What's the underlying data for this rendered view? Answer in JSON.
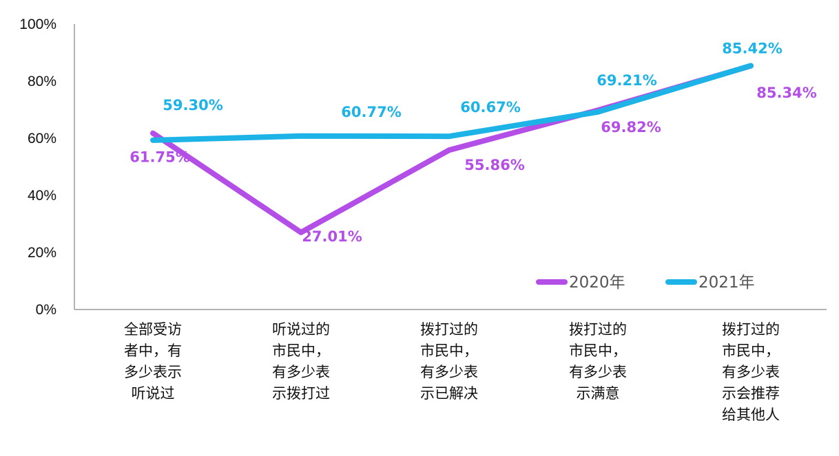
{
  "chart_data": {
    "type": "line",
    "categories": [
      [
        "全部受访",
        "者中，有",
        "多少表示",
        "听说过"
      ],
      [
        "听说过的",
        "市民中，",
        "有多少表",
        "示拨打过"
      ],
      [
        "拨打过的",
        "市民中，",
        "有多少表",
        "示已解决"
      ],
      [
        "拨打过的",
        "市民中，",
        "有多少表",
        "示满意"
      ],
      [
        "拨打过的",
        "市民中，",
        "有多少表",
        "示会推荐",
        "给其他人"
      ]
    ],
    "series": [
      {
        "name": "2020年",
        "color": "#B34FE6",
        "values": [
          61.75,
          27.01,
          55.86,
          69.82,
          85.34
        ],
        "labels": [
          "61.75%",
          "27.01%",
          "55.86%",
          "69.82%",
          "85.34%"
        ]
      },
      {
        "name": "2021年",
        "color": "#1DB3E6",
        "values": [
          59.3,
          60.77,
          60.67,
          69.21,
          85.42
        ],
        "labels": [
          "59.30%",
          "60.77%",
          "60.67%",
          "69.21%",
          "85.42%"
        ]
      }
    ],
    "ylim": [
      0,
      100
    ],
    "yticks": [
      "0%",
      "20%",
      "40%",
      "60%",
      "80%",
      "100%"
    ],
    "grid": false,
    "legend": "bottom-right",
    "title": "",
    "xlabel": "",
    "ylabel": ""
  }
}
